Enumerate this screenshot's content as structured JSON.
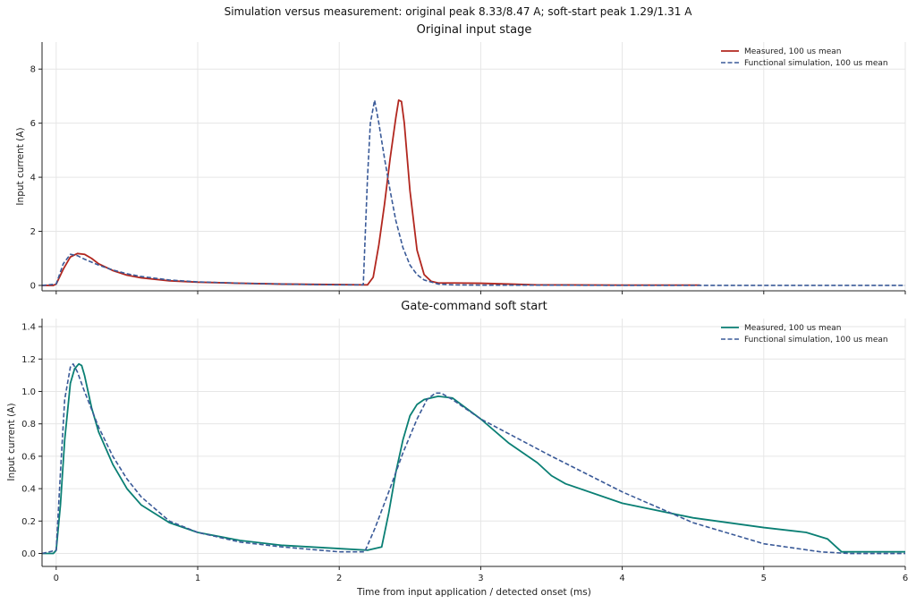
{
  "figure": {
    "suptitle": "Simulation versus measurement: original peak 8.33/8.47 A; soft-start peak 1.29/1.31 A"
  },
  "colors": {
    "measured_top": "#b2271f",
    "measured_bottom": "#0a7f74",
    "simulation": "#3a5a98"
  },
  "chart_data": [
    {
      "type": "line",
      "title": "Original input stage",
      "xlabel": "",
      "ylabel": "Input current (A)",
      "xlim": [
        -0.1,
        6.0
      ],
      "ylim": [
        -0.2,
        9.0
      ],
      "xticks": [
        0,
        1,
        2,
        3,
        4,
        5,
        6
      ],
      "yticks": [
        0,
        2,
        4,
        6,
        8
      ],
      "grid": true,
      "legend": "top-right",
      "series": [
        {
          "name": "Measured, 100 us mean",
          "style": "solid",
          "color": "#b2271f",
          "x": [
            -0.1,
            -0.02,
            0.0,
            0.05,
            0.1,
            0.15,
            0.2,
            0.25,
            0.3,
            0.4,
            0.5,
            0.6,
            0.8,
            1.0,
            1.3,
            1.6,
            2.0,
            2.2,
            2.24,
            2.28,
            2.32,
            2.36,
            2.4,
            2.42,
            2.44,
            2.46,
            2.5,
            2.55,
            2.6,
            2.65,
            2.7,
            2.8,
            3.0,
            3.2,
            3.4,
            4.0,
            4.55
          ],
          "y": [
            0.0,
            0.0,
            0.05,
            0.6,
            1.05,
            1.18,
            1.15,
            1.0,
            0.8,
            0.55,
            0.38,
            0.28,
            0.17,
            0.12,
            0.08,
            0.05,
            0.03,
            0.02,
            0.3,
            1.5,
            3.0,
            4.7,
            6.2,
            6.85,
            6.8,
            6.0,
            3.5,
            1.3,
            0.4,
            0.15,
            0.09,
            0.09,
            0.08,
            0.05,
            0.02,
            0.01,
            0.01
          ]
        },
        {
          "name": "Functional simulation, 100 us mean",
          "style": "dashed",
          "color": "#3a5a98",
          "x": [
            -0.1,
            0.0,
            0.05,
            0.1,
            0.15,
            0.2,
            0.3,
            0.4,
            0.5,
            0.6,
            0.8,
            1.0,
            1.3,
            1.6,
            2.0,
            2.17,
            2.2,
            2.22,
            2.25,
            2.28,
            2.32,
            2.36,
            2.4,
            2.45,
            2.5,
            2.55,
            2.6,
            2.7,
            2.8,
            3.0,
            3.5,
            4.0,
            5.0,
            6.0
          ],
          "y": [
            0.0,
            0.05,
            0.8,
            1.15,
            1.1,
            0.97,
            0.75,
            0.57,
            0.43,
            0.33,
            0.2,
            0.13,
            0.08,
            0.05,
            0.02,
            0.02,
            4.0,
            6.0,
            6.85,
            6.0,
            4.7,
            3.5,
            2.4,
            1.4,
            0.75,
            0.4,
            0.2,
            0.05,
            0.02,
            0.01,
            0.01,
            0.0,
            0.0,
            0.0
          ]
        }
      ]
    },
    {
      "type": "line",
      "title": "Gate-command soft start",
      "xlabel": "Time from input application / detected onset (ms)",
      "ylabel": "Input current (A)",
      "xlim": [
        -0.1,
        6.0
      ],
      "ylim": [
        -0.08,
        1.45
      ],
      "xticks": [
        0,
        1,
        2,
        3,
        4,
        5,
        6
      ],
      "yticks": [
        0.0,
        0.2,
        0.4,
        0.6,
        0.8,
        1.0,
        1.2,
        1.4
      ],
      "grid": true,
      "legend": "top-right",
      "series": [
        {
          "name": "Measured, 100 us mean",
          "style": "solid",
          "color": "#0a7f74",
          "x": [
            -0.1,
            -0.02,
            0.0,
            0.03,
            0.06,
            0.1,
            0.13,
            0.16,
            0.18,
            0.2,
            0.25,
            0.3,
            0.4,
            0.5,
            0.6,
            0.8,
            1.0,
            1.3,
            1.6,
            2.0,
            2.2,
            2.3,
            2.35,
            2.4,
            2.45,
            2.5,
            2.55,
            2.6,
            2.7,
            2.8,
            3.0,
            3.2,
            3.4,
            3.5,
            3.6,
            4.0,
            4.5,
            5.0,
            5.3,
            5.45,
            5.5,
            5.55,
            6.0
          ],
          "y": [
            0.0,
            0.0,
            0.02,
            0.3,
            0.7,
            1.05,
            1.14,
            1.17,
            1.16,
            1.1,
            0.9,
            0.75,
            0.55,
            0.4,
            0.3,
            0.19,
            0.13,
            0.08,
            0.05,
            0.03,
            0.02,
            0.04,
            0.25,
            0.5,
            0.7,
            0.85,
            0.92,
            0.95,
            0.97,
            0.96,
            0.83,
            0.68,
            0.56,
            0.48,
            0.43,
            0.31,
            0.22,
            0.16,
            0.13,
            0.09,
            0.05,
            0.01,
            0.01
          ]
        },
        {
          "name": "Functional simulation, 100 us mean",
          "style": "dashed",
          "color": "#3a5a98",
          "x": [
            -0.1,
            0.0,
            0.03,
            0.06,
            0.1,
            0.12,
            0.15,
            0.2,
            0.3,
            0.4,
            0.5,
            0.6,
            0.8,
            1.0,
            1.3,
            1.6,
            2.0,
            2.18,
            2.25,
            2.35,
            2.45,
            2.55,
            2.62,
            2.68,
            2.72,
            2.8,
            3.0,
            3.5,
            4.0,
            4.5,
            5.0,
            5.4,
            5.6,
            6.0
          ],
          "y": [
            0.0,
            0.02,
            0.5,
            0.95,
            1.15,
            1.17,
            1.12,
            1.0,
            0.78,
            0.6,
            0.46,
            0.35,
            0.2,
            0.13,
            0.07,
            0.04,
            0.01,
            0.01,
            0.15,
            0.38,
            0.62,
            0.83,
            0.95,
            0.99,
            0.99,
            0.95,
            0.83,
            0.6,
            0.38,
            0.19,
            0.06,
            0.01,
            0.0,
            0.0
          ]
        }
      ]
    }
  ]
}
